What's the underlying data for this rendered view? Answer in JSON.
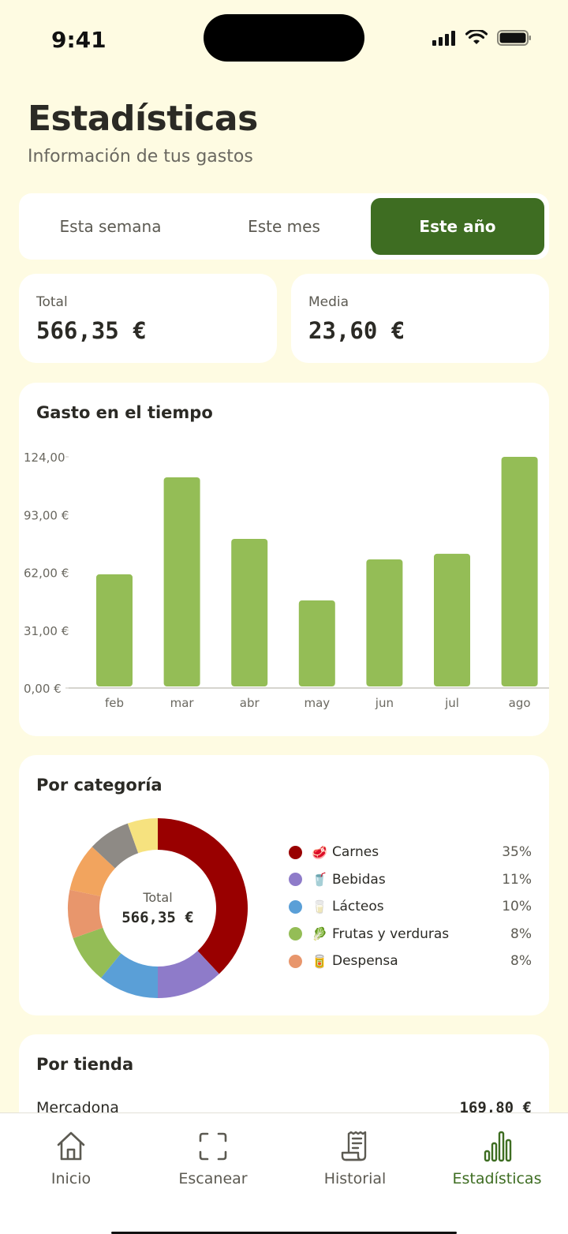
{
  "status": {
    "time": "9:41"
  },
  "header": {
    "title": "Estadísticas",
    "subtitle": "Información de tus gastos"
  },
  "period_tabs": [
    {
      "label": "Esta semana",
      "active": false
    },
    {
      "label": "Este mes",
      "active": false
    },
    {
      "label": "Este año",
      "active": true
    }
  ],
  "stats": {
    "total_label": "Total",
    "total_value": "566,35 €",
    "average_label": "Media",
    "average_value": "23,60 €"
  },
  "time_chart": {
    "title": "Gasto en el tiempo"
  },
  "category": {
    "title": "Por categoría",
    "center_label": "Total",
    "center_value": "566,35 €",
    "legend": [
      {
        "name": "Carnes",
        "emoji": "🥩",
        "pct": "35%",
        "color": "#990000"
      },
      {
        "name": "Bebidas",
        "emoji": "🥤",
        "pct": "11%",
        "color": "#8e7bc9"
      },
      {
        "name": "Lácteos",
        "emoji": "🥛",
        "pct": "10%",
        "color": "#5a9fd7"
      },
      {
        "name": "Frutas y verduras",
        "emoji": "🥬",
        "pct": "8%",
        "color": "#94bd56"
      },
      {
        "name": "Despensa",
        "emoji": "🥫",
        "pct": "8%",
        "color": "#e8966c"
      }
    ]
  },
  "stores": {
    "title": "Por tienda",
    "rows": [
      {
        "name": "Mercadona",
        "amount": "169,80 €"
      }
    ]
  },
  "tabbar": [
    {
      "label": "Inicio",
      "icon": "home-icon",
      "active": false
    },
    {
      "label": "Escanear",
      "icon": "scan-icon",
      "active": false
    },
    {
      "label": "Historial",
      "icon": "receipt-icon",
      "active": false
    },
    {
      "label": "Estadísticas",
      "icon": "bar-chart-icon",
      "active": true
    }
  ],
  "colors": {
    "accent": "#3e6d22",
    "bar": "#94bd56",
    "background": "#fefbe2"
  },
  "chart_data": [
    {
      "type": "bar",
      "title": "Gasto en el tiempo",
      "categories": [
        "feb",
        "mar",
        "abr",
        "may",
        "jun",
        "jul",
        "ago"
      ],
      "values": [
        61,
        113,
        80,
        47,
        69,
        72,
        124
      ],
      "ylim": [
        0,
        124
      ],
      "yticks": [
        "0,00 €",
        "31,00 €",
        "62,00 €",
        "93,00 €",
        "124,00"
      ],
      "ytick_values": [
        0,
        31,
        62,
        93,
        124
      ],
      "grid": false,
      "xlabel": "",
      "ylabel": ""
    },
    {
      "type": "pie",
      "title": "Por categoría",
      "donut": true,
      "slices": [
        {
          "label": "Carnes",
          "value": 35,
          "color": "#990000"
        },
        {
          "label": "Bebidas",
          "value": 11,
          "color": "#8e7bc9"
        },
        {
          "label": "Lácteos",
          "value": 10,
          "color": "#5a9fd7"
        },
        {
          "label": "Frutas y verduras",
          "value": 8,
          "color": "#94bd56"
        },
        {
          "label": "Despensa",
          "value": 8,
          "color": "#e8966c"
        },
        {
          "label": "",
          "value": 8,
          "color": "#f2a45e"
        },
        {
          "label": "",
          "value": 7,
          "color": "#8e8a85"
        },
        {
          "label": "",
          "value": 5,
          "color": "#f6e27f"
        }
      ]
    }
  ]
}
